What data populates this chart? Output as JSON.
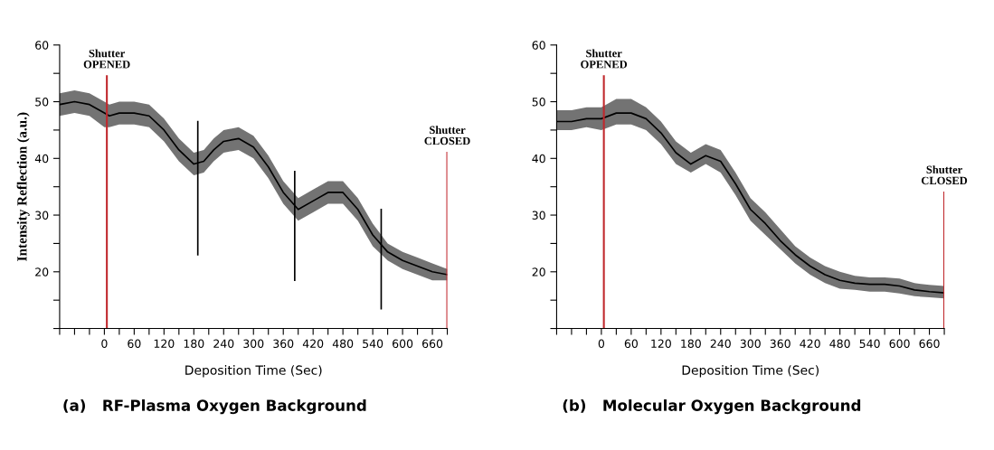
{
  "chart_data": [
    {
      "type": "line",
      "title": "(a)   RF-Plasma Oxygen Background",
      "xlabel": "Deposition Time (Sec)",
      "ylabel": "Intensity Reflection (a.u.)",
      "xlim": [
        -90,
        690
      ],
      "ylim": [
        10,
        60
      ],
      "xticks": [
        {
          "value": -90,
          "label": null
        },
        {
          "value": -60,
          "label": null
        },
        {
          "value": -30,
          "label": null
        },
        0,
        {
          "value": 30,
          "label": null
        },
        60,
        {
          "value": 90,
          "label": null
        },
        120,
        {
          "value": 150,
          "label": null
        },
        180,
        {
          "value": 210,
          "label": null
        },
        240,
        {
          "value": 270,
          "label": null
        },
        300,
        {
          "value": 330,
          "label": null
        },
        360,
        {
          "value": 390,
          "label": null
        },
        420,
        {
          "value": 450,
          "label": null
        },
        480,
        {
          "value": 510,
          "label": null
        },
        540,
        {
          "value": 570,
          "label": null
        },
        600,
        {
          "value": 630,
          "label": null
        },
        660,
        {
          "value": 690,
          "label": null
        }
      ],
      "yticks": [
        {
          "value": 10,
          "label": null
        },
        {
          "value": 15,
          "label": null
        },
        20,
        {
          "value": 25,
          "label": null
        },
        30,
        {
          "value": 35,
          "label": null
        },
        40,
        {
          "value": 45,
          "label": null
        },
        50,
        {
          "value": 55,
          "label": null
        },
        60
      ],
      "grid": false,
      "legend": false,
      "series": [
        {
          "color": "#000000",
          "x": [
            -90,
            -60,
            -30,
            0,
            10,
            30,
            60,
            90,
            120,
            150,
            180,
            200,
            220,
            240,
            270,
            300,
            330,
            360,
            390,
            420,
            450,
            480,
            510,
            540,
            570,
            600,
            630,
            660,
            690
          ],
          "values": [
            49.5,
            50,
            49.5,
            48,
            47.5,
            48,
            48,
            47.5,
            45,
            41.5,
            39,
            39.5,
            41.5,
            43,
            43.5,
            42,
            38.5,
            34,
            31,
            32.5,
            34,
            34,
            31,
            26.5,
            23.5,
            22,
            21,
            20,
            19.5
          ],
          "lower": [
            47.5,
            48,
            47.5,
            45.5,
            45.5,
            46,
            46,
            45.5,
            43,
            39.5,
            37,
            37.5,
            39.5,
            41,
            41.5,
            40,
            36.5,
            32,
            29,
            30.5,
            32,
            32,
            29,
            24.5,
            22,
            20.5,
            19.5,
            18.5,
            18.5
          ],
          "upper": [
            51.5,
            52,
            51.5,
            50,
            49.5,
            50,
            50,
            49.5,
            47,
            43.5,
            41,
            41.5,
            43.5,
            45,
            45.5,
            44,
            40.5,
            36,
            33,
            34.5,
            36,
            36,
            33,
            28.5,
            25,
            23.5,
            22.5,
            21.5,
            20.5
          ]
        },
        {
          "color": "#000000",
          "x": [
            188,
            188
          ],
          "values": [
            46.5,
            23
          ]
        },
        {
          "color": "#000000",
          "x": [
            383,
            383
          ],
          "values": [
            37.7,
            18.5
          ]
        },
        {
          "color": "#000000",
          "x": [
            557,
            557
          ],
          "values": [
            31,
            13.5
          ]
        }
      ],
      "ref_lines": [
        {
          "axis": "x",
          "value": 5,
          "label": "Shutter\nOPENED",
          "color": "#c0282d"
        },
        {
          "axis": "x",
          "value": 690,
          "label": "Shutter\nCLOSED",
          "color": "#c0282d"
        }
      ]
    },
    {
      "type": "line",
      "title": "(b)   Molecular Oxygen Background",
      "xlabel": "Deposition Time (Sec)",
      "xlim": [
        -90,
        690
      ],
      "ylim": [
        10,
        60
      ],
      "xticks": [
        {
          "value": -90,
          "label": null
        },
        {
          "value": -60,
          "label": null
        },
        {
          "value": -30,
          "label": null
        },
        0,
        {
          "value": 30,
          "label": null
        },
        60,
        {
          "value": 90,
          "label": null
        },
        120,
        {
          "value": 150,
          "label": null
        },
        180,
        {
          "value": 210,
          "label": null
        },
        240,
        {
          "value": 270,
          "label": null
        },
        300,
        {
          "value": 330,
          "label": null
        },
        360,
        {
          "value": 390,
          "label": null
        },
        420,
        {
          "value": 450,
          "label": null
        },
        480,
        {
          "value": 510,
          "label": null
        },
        540,
        {
          "value": 570,
          "label": null
        },
        600,
        {
          "value": 630,
          "label": null
        },
        660,
        {
          "value": 690,
          "label": null
        }
      ],
      "yticks": [
        {
          "value": 10,
          "label": null
        },
        {
          "value": 15,
          "label": null
        },
        20,
        {
          "value": 25,
          "label": null
        },
        30,
        {
          "value": 35,
          "label": null
        },
        40,
        {
          "value": 45,
          "label": null
        },
        50,
        {
          "value": 55,
          "label": null
        },
        60
      ],
      "grid": false,
      "legend": false,
      "series": [
        {
          "color": "#000000",
          "x": [
            -90,
            -60,
            -30,
            0,
            30,
            60,
            90,
            120,
            150,
            180,
            210,
            240,
            270,
            300,
            330,
            360,
            390,
            420,
            450,
            480,
            510,
            540,
            570,
            600,
            630,
            660,
            690
          ],
          "values": [
            46.5,
            46.5,
            47,
            47,
            48,
            48,
            47,
            44.5,
            41,
            39,
            40.5,
            39.5,
            35.5,
            31,
            28.5,
            25.5,
            23,
            21,
            19.5,
            18.5,
            18,
            17.8,
            17.8,
            17.5,
            16.8,
            16.5,
            16.3
          ],
          "lower": [
            45,
            45,
            45.5,
            45,
            46,
            46,
            45,
            42.5,
            39,
            37.5,
            39,
            37.5,
            33.5,
            29,
            26.5,
            24,
            21.5,
            19.5,
            18,
            17,
            16.8,
            16.5,
            16.5,
            16.2,
            15.7,
            15.5,
            15.3
          ],
          "upper": [
            48.5,
            48.5,
            49,
            49,
            50.5,
            50.5,
            49,
            46.5,
            43,
            41,
            42.5,
            41.5,
            37.5,
            33,
            30.5,
            27.5,
            24.5,
            22.5,
            21,
            20,
            19.3,
            19,
            19,
            18.8,
            18,
            17.7,
            17.5
          ]
        }
      ],
      "ref_lines": [
        {
          "axis": "x",
          "value": 5,
          "label": "Shutter\nOPENED",
          "color": "#c0282d"
        },
        {
          "axis": "x",
          "value": 690,
          "label": "Shutter\nCLOSED",
          "color": "#c0282d"
        }
      ]
    }
  ]
}
